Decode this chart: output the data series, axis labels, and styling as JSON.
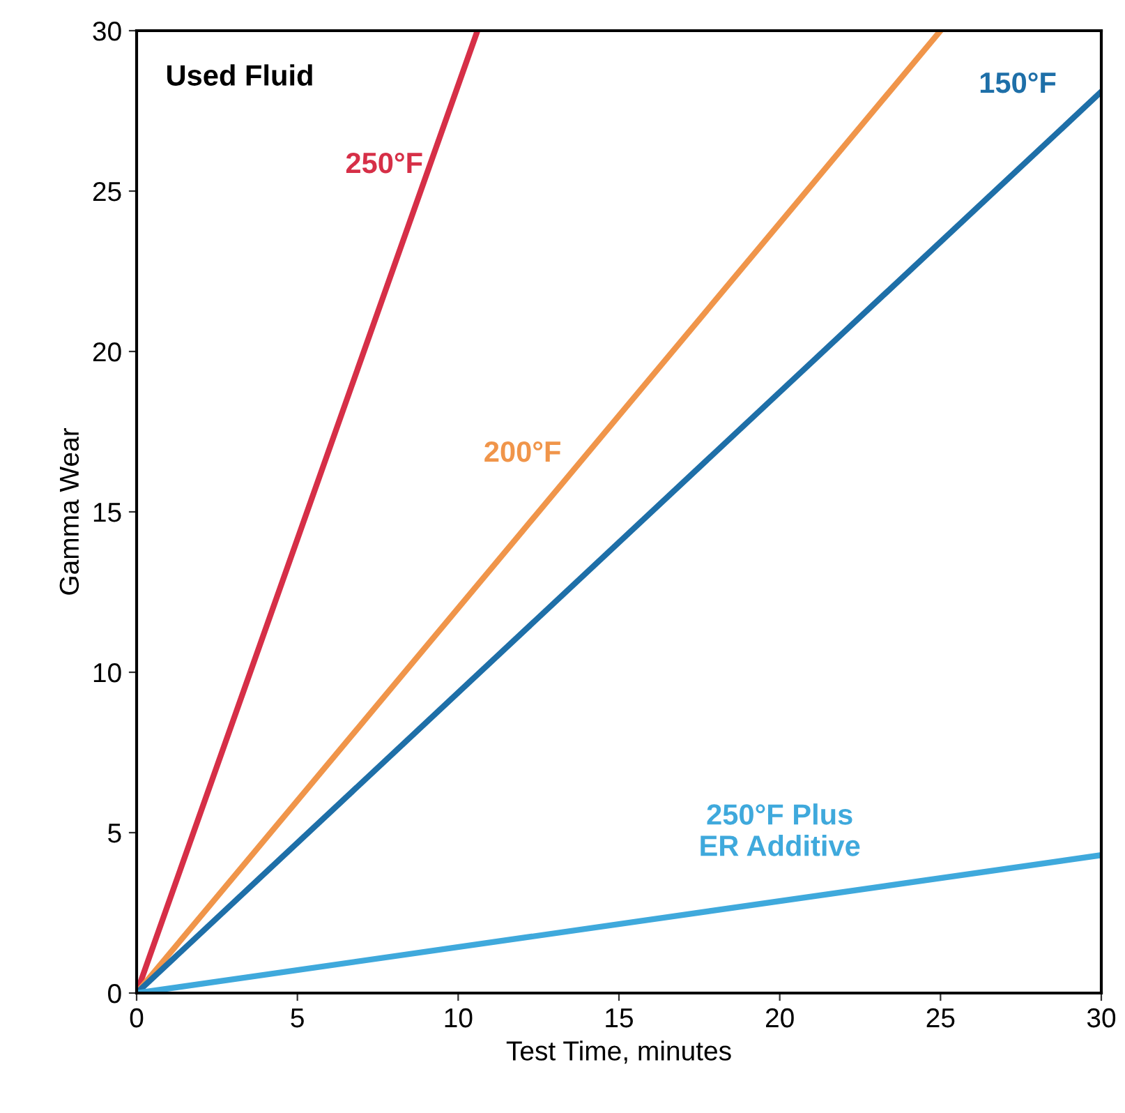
{
  "chart_data": {
    "type": "line",
    "title": "Used Fluid",
    "xlabel": "Test Time, minutes",
    "ylabel": "Gamma Wear",
    "xlim": [
      0,
      30
    ],
    "ylim": [
      0,
      30
    ],
    "xticks": [
      0,
      5,
      10,
      15,
      20,
      25,
      30
    ],
    "yticks": [
      0,
      5,
      10,
      15,
      20,
      25,
      30
    ],
    "grid": false,
    "legend": false,
    "marker": "none",
    "line_style": "solid",
    "series": [
      {
        "name": "250°F",
        "color": "#d62f47",
        "x": [
          0,
          10.6
        ],
        "values": [
          0,
          30
        ]
      },
      {
        "name": "200°F",
        "color": "#f0954a",
        "x": [
          0,
          25
        ],
        "values": [
          0,
          30
        ]
      },
      {
        "name": "150°F",
        "color": "#1e6fa8",
        "x": [
          0,
          30
        ],
        "values": [
          0,
          28.1
        ]
      },
      {
        "name": "250°F Plus\nER Additive",
        "color": "#3fa9dc",
        "x": [
          0,
          30
        ],
        "values": [
          0,
          4.3
        ]
      }
    ]
  }
}
